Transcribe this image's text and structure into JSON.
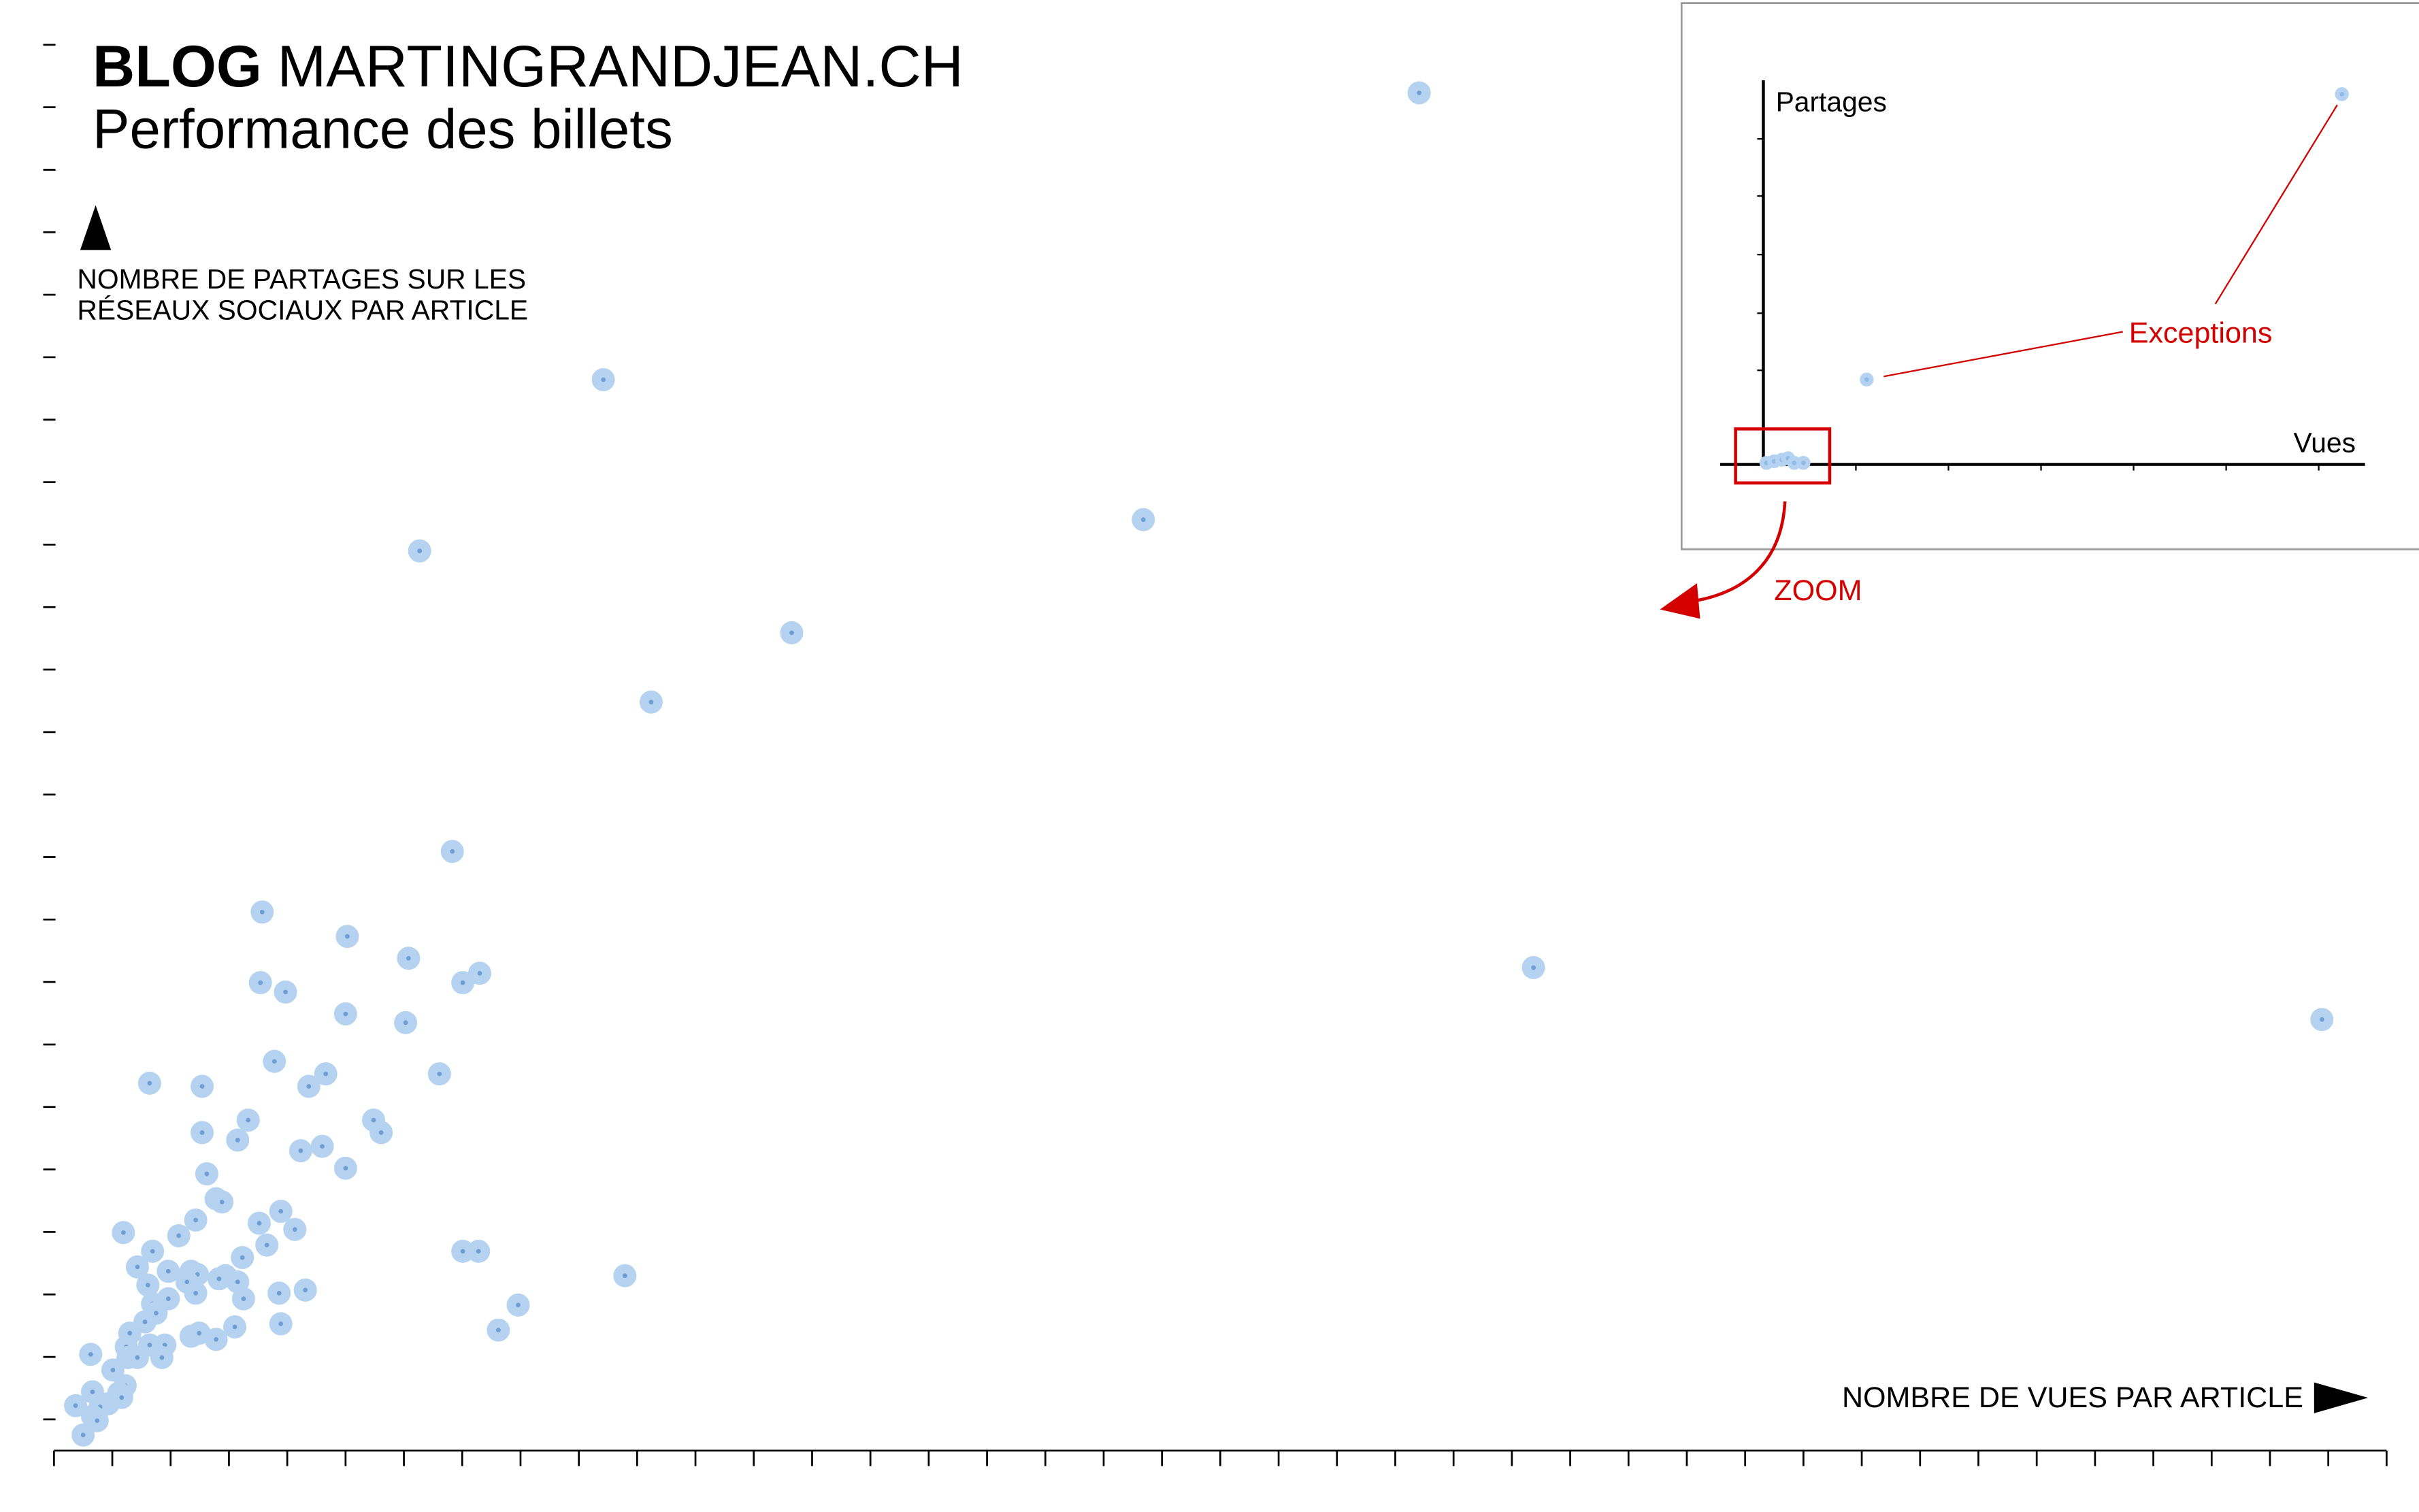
{
  "chart_data": {
    "type": "scatter",
    "title": {
      "brand": "BLOG",
      "site": "MARTINGRANDJEAN.CH"
    },
    "subtitle": "Performance des billets",
    "ylabel": [
      "NOMBRE DE PARTAGES SUR LES",
      "RÉSEAUX SOCIAUX PAR ARTICLE"
    ],
    "xlabel": "NOMBRE DE VUES PAR ARTICLE",
    "inset": {
      "ylabel": "Partages",
      "xlabel": "Vues",
      "annotation": "Exceptions",
      "zoom": "ZOOM"
    },
    "color": "#6d9fd6",
    "halo_color": "#b5d3f1",
    "grid": false,
    "xlim": [
      0,
      40
    ],
    "xticks": [
      0,
      1,
      2,
      3,
      4,
      5,
      6,
      7,
      8,
      9,
      10,
      11,
      12,
      13,
      14,
      15,
      16,
      17,
      18,
      19,
      20,
      21,
      22,
      23,
      24,
      25,
      26,
      27,
      28,
      29,
      30,
      31,
      32,
      33,
      34,
      35,
      36,
      37,
      38,
      39,
      40
    ],
    "ylim": [
      -0.5,
      22.5
    ],
    "yticks": [
      0,
      1,
      2,
      3,
      4,
      5,
      6,
      7,
      8,
      9,
      10,
      11,
      12,
      13,
      14,
      15,
      16,
      17,
      18,
      19,
      20,
      21,
      22
    ],
    "x": [
      23.41,
      9.42,
      6.27,
      18.68,
      12.65,
      10.24,
      6.83,
      25.37,
      38.89,
      3.57,
      5.03,
      6.08,
      3.54,
      3.97,
      7.01,
      7.3,
      5.0,
      6.03,
      3.78,
      4.66,
      4.37,
      6.61,
      1.64,
      2.54,
      3.33,
      3.15,
      2.54,
      5.48,
      5.61,
      4.23,
      4.6,
      5.0,
      2.62,
      2.78,
      2.88,
      3.89,
      3.52,
      2.43,
      4.13,
      2.14,
      1.19,
      3.65,
      1.69,
      3.23,
      7.01,
      7.28,
      9.79,
      1.43,
      1.96,
      2.35,
      2.46,
      2.94,
      2.83,
      2.28,
      3.15,
      1.61,
      2.43,
      3.86,
      4.31,
      3.25,
      1.69,
      1.96,
      1.75,
      7.96,
      1.56,
      3.89,
      3.1,
      7.62,
      2.35,
      2.49,
      2.78,
      1.3,
      1.24,
      1.64,
      1.9,
      0.63,
      1.27,
      1.43,
      1.85,
      1.01,
      1.22,
      0.66,
      1.11,
      0.93,
      0.79,
      1.16,
      0.37,
      0.66,
      0.74,
      0.5
    ],
    "values": [
      21.23,
      16.64,
      13.9,
      14.4,
      12.59,
      11.48,
      9.09,
      7.23,
      6.4,
      8.12,
      7.73,
      7.38,
      6.99,
      6.84,
      6.99,
      7.14,
      6.49,
      6.35,
      5.73,
      5.53,
      5.33,
      5.53,
      5.38,
      5.33,
      4.79,
      4.47,
      4.59,
      4.79,
      4.59,
      4.3,
      4.37,
      4.02,
      3.93,
      3.53,
      3.48,
      3.33,
      3.14,
      3.19,
      3.04,
      2.94,
      2.99,
      2.79,
      2.69,
      2.59,
      2.69,
      2.69,
      2.3,
      2.44,
      2.37,
      2.37,
      2.32,
      2.3,
      2.25,
      2.2,
      2.2,
      2.15,
      2.02,
      2.02,
      2.07,
      1.93,
      1.85,
      1.93,
      1.7,
      1.83,
      1.56,
      1.53,
      1.48,
      1.43,
      1.33,
      1.38,
      1.28,
      1.38,
      1.16,
      1.19,
      1.19,
      1.04,
      0.99,
      0.99,
      0.99,
      0.79,
      0.54,
      0.44,
      0.42,
      0.25,
      0.2,
      0.35,
      0.22,
      0.05,
      -0.02,
      -0.25
    ]
  }
}
